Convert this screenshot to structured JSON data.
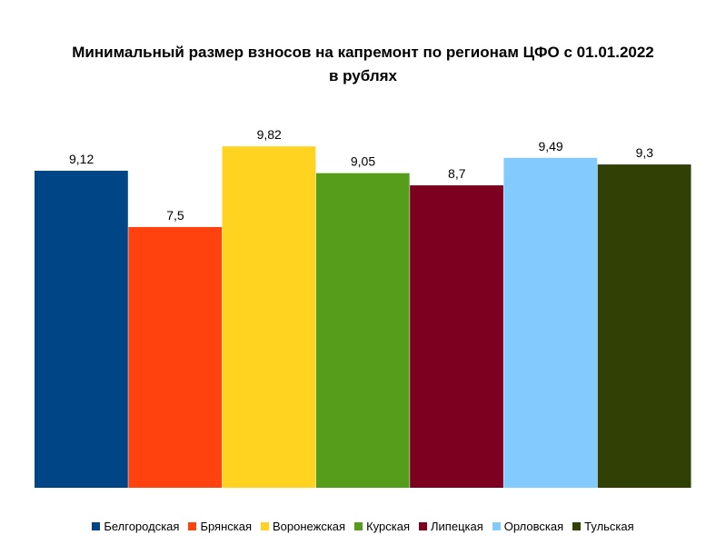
{
  "chart_data": {
    "type": "bar",
    "title": "Минимальный размер взносов на капремонт по регионам ЦФО с 01.01.2022",
    "subtitle": "в рублях",
    "series": [
      {
        "name": "Белгородская",
        "value": 9.12,
        "label": "9,12",
        "color": "#004586"
      },
      {
        "name": "Брянская",
        "value": 7.5,
        "label": "7,5",
        "color": "#ff420e"
      },
      {
        "name": "Воронежская",
        "value": 9.82,
        "label": "9,82",
        "color": "#ffd320"
      },
      {
        "name": "Курская",
        "value": 9.05,
        "label": "9,05",
        "color": "#579d1c"
      },
      {
        "name": "Липецкая",
        "value": 8.7,
        "label": "8,7",
        "color": "#7e0021"
      },
      {
        "name": "Орловская",
        "value": 9.49,
        "label": "9,49",
        "color": "#83caff"
      },
      {
        "name": "Тульская",
        "value": 9.3,
        "label": "9,3",
        "color": "#314004"
      }
    ],
    "ylim": [
      0,
      11
    ],
    "grid": false,
    "legend_position": "bottom"
  }
}
